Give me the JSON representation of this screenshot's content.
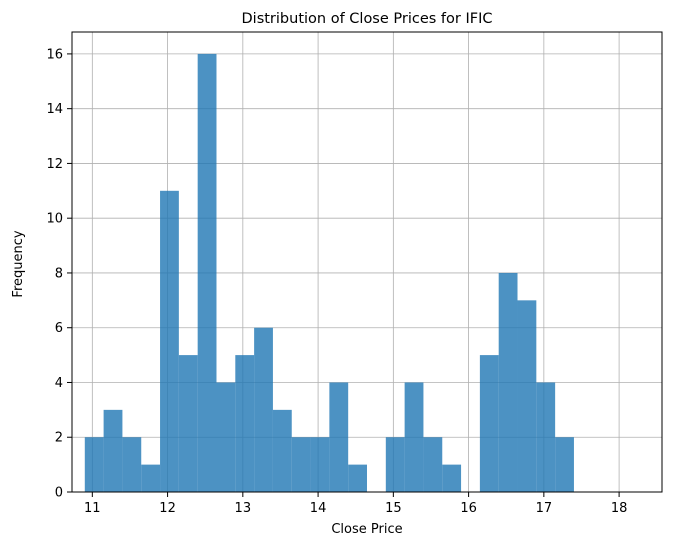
{
  "chart_data": {
    "type": "histogram",
    "title": "Distribution of Close Prices for IFIC",
    "xlabel": "Close Price",
    "ylabel": "Frequency",
    "xlim": [
      10.73,
      18.57
    ],
    "ylim": [
      0,
      16.8
    ],
    "bins": {
      "start": 10.9,
      "width": 0.25,
      "counts": [
        2,
        3,
        2,
        1,
        11,
        5,
        16,
        4,
        5,
        6,
        3,
        2,
        2,
        4,
        1,
        0,
        2,
        4,
        2,
        1,
        0,
        5,
        8,
        7,
        4,
        2
      ]
    },
    "x_ticks": [
      11,
      12,
      13,
      14,
      15,
      16,
      17,
      18
    ],
    "y_ticks": [
      0,
      2,
      4,
      6,
      8,
      10,
      12,
      14,
      16
    ],
    "bar_color": "#1f77b4",
    "bar_opacity": 0.8,
    "grid": true
  }
}
